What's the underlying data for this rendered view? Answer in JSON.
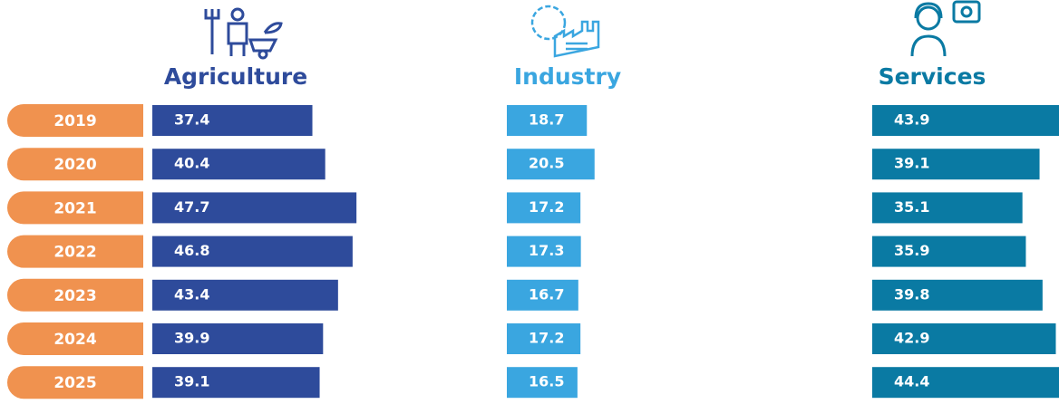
{
  "chart_data": {
    "type": "bar",
    "categories": [
      "2019",
      "2020",
      "2021",
      "2022",
      "2023",
      "2024",
      "2025"
    ],
    "category_color": "#f0924f",
    "series": [
      {
        "name": "Agriculture",
        "color": "#2e4b9b",
        "values": [
          37.4,
          40.4,
          47.7,
          46.8,
          43.4,
          39.9,
          39.1
        ]
      },
      {
        "name": "Industry",
        "color": "#3aa6e0",
        "values": [
          18.7,
          20.5,
          17.2,
          17.3,
          16.7,
          17.2,
          16.5
        ]
      },
      {
        "name": "Services",
        "color": "#0a7aa3",
        "values": [
          43.9,
          39.1,
          35.1,
          35.9,
          39.8,
          42.9,
          44.4
        ]
      }
    ]
  }
}
